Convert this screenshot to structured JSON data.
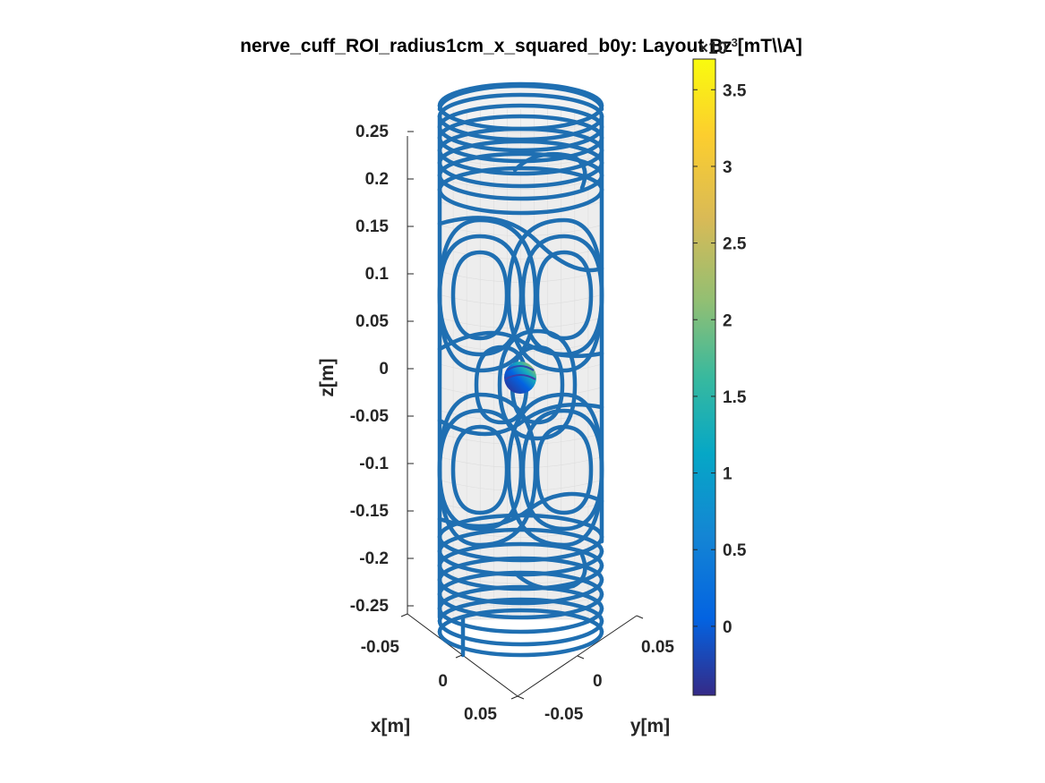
{
  "chart_data": {
    "type": "surface3d",
    "title": "nerve_cuff_ROI_radius1cm_x_squared_b0y: Layout Bz [mT\\\\A]",
    "xlabel": "x[m]",
    "ylabel": "y[m]",
    "zlabel": "z[m]",
    "x_ticks": [
      "-0.05",
      "0",
      "0.05"
    ],
    "y_ticks": [
      "-0.05",
      "0",
      "0.05"
    ],
    "z_ticks": [
      "0.25",
      "0.2",
      "0.15",
      "0.1",
      "0.05",
      "0",
      "-0.05",
      "-0.1",
      "-0.15",
      "-0.2",
      "-0.25"
    ],
    "z_values": [
      0.25,
      0.2,
      0.15,
      0.1,
      0.05,
      0,
      -0.05,
      -0.1,
      -0.15,
      -0.2,
      -0.25
    ],
    "zlim": [
      -0.25,
      0.25
    ],
    "cylinder_radius": 0.05,
    "roi_radius": 0.01,
    "colorbar": {
      "exponent_label": "×10",
      "exponent": "-3",
      "ticks": [
        "3.5",
        "3",
        "2.5",
        "2",
        "1.5",
        "1",
        "0.5",
        "0"
      ],
      "tick_values": [
        3.5,
        3,
        2.5,
        2,
        1.5,
        1,
        0.5,
        0
      ],
      "range": [
        -0.45,
        3.7
      ],
      "colormap": "parula"
    },
    "wire_color": "#1f6fb2",
    "surface_color": "#ebebeb"
  }
}
